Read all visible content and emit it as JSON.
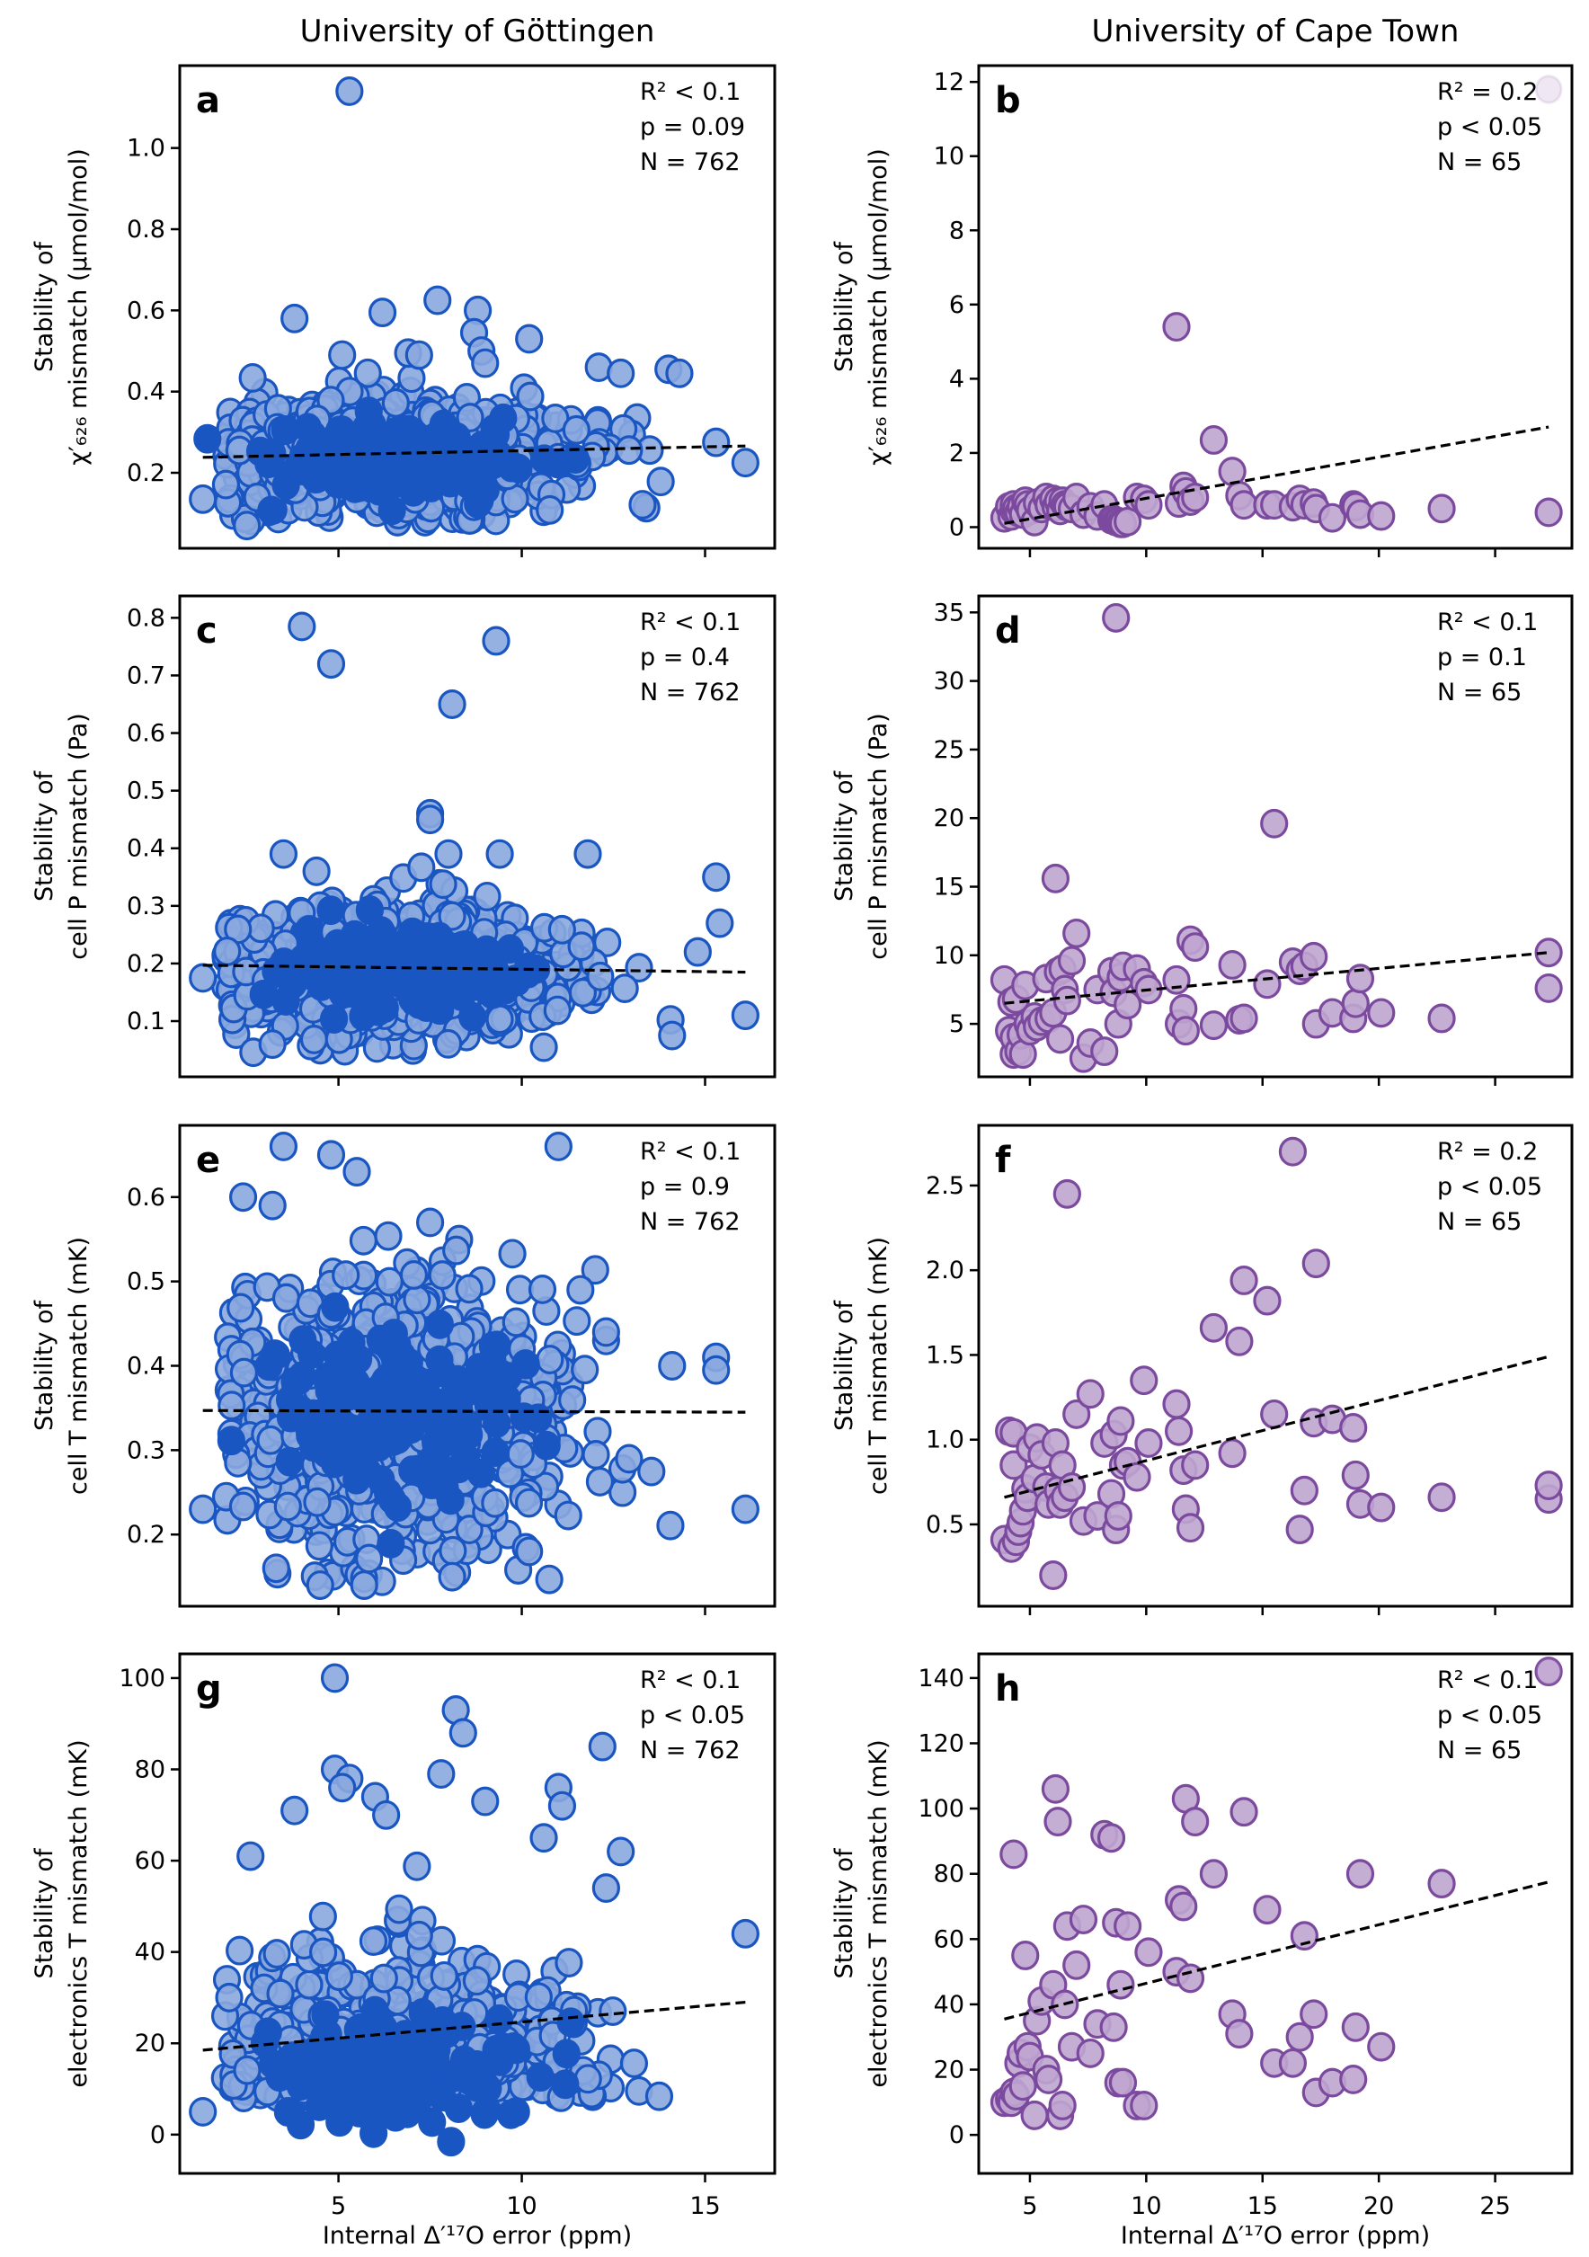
{
  "figure": {
    "column_titles": [
      "University of Göttingen",
      "University of Cape Town"
    ],
    "xlabel": "Internal Δ′¹⁷O error (ppm)",
    "colors": {
      "gottingen_edge": "#1a56c2",
      "gottingen_face": "#8aa8df",
      "capetown_edge": "#7b4a9e",
      "capetown_face": "#bfa5cf",
      "fit_line": "#000000"
    }
  },
  "chart_data": [
    {
      "id": "a",
      "type": "scatter",
      "group": "University of Göttingen",
      "ylabel_lines": [
        "Stability of",
        "χ′₆₂₆ mismatch (µmol/mol)"
      ],
      "xlim": [
        0.67,
        16.9
      ],
      "ylim": [
        0.014,
        1.203
      ],
      "xticks": [
        5,
        10,
        15
      ],
      "xtick_labels_shown": false,
      "yticks": [
        0.2,
        0.4,
        0.6,
        0.8,
        1.0
      ],
      "ytick_labels": [
        "0.2",
        "0.4",
        "0.6",
        "0.8",
        "1.0"
      ],
      "stats": {
        "r2": "R² < 0.1",
        "p": "p = 0.09",
        "n": "N = 762"
      },
      "fit": {
        "x": [
          1.3,
          16.1
        ],
        "y": [
          0.238,
          0.266
        ]
      },
      "outliers": {
        "x": [
          5.3,
          3.8,
          6.2,
          7.7,
          8.8,
          8.7,
          10.2,
          12.1,
          12.7,
          14.0,
          14.3,
          15.3,
          16.1,
          1.3,
          2.5,
          8.9,
          9.0,
          5.1,
          6.9,
          7.2
        ],
        "y": [
          1.14,
          0.58,
          0.595,
          0.625,
          0.6,
          0.545,
          0.53,
          0.46,
          0.445,
          0.455,
          0.445,
          0.275,
          0.225,
          0.135,
          0.07,
          0.5,
          0.47,
          0.49,
          0.495,
          0.49
        ]
      },
      "cloud": {
        "x_range": [
          1.9,
          15.4
        ],
        "x_center": 6.5,
        "y_center": 0.24,
        "y_spread": 0.07,
        "count": 742
      }
    },
    {
      "id": "b",
      "type": "scatter",
      "group": "University of Cape Town",
      "ylabel_lines": [
        "Stability of",
        "χ′₆₂₆ mismatch (µmol/mol)"
      ],
      "xlim": [
        2.8,
        28.3
      ],
      "ylim": [
        -0.57,
        12.44
      ],
      "xticks": [
        5,
        10,
        15,
        20,
        25
      ],
      "xtick_labels_shown": false,
      "yticks": [
        0,
        2,
        4,
        6,
        8,
        10,
        12
      ],
      "ytick_labels": [
        "0",
        "2",
        "4",
        "6",
        "8",
        "10",
        "12"
      ],
      "stats": {
        "r2": "R² = 0.2",
        "p": "p < 0.05",
        "n": "N = 65"
      },
      "fit": {
        "x": [
          3.9,
          27.3
        ],
        "y": [
          0.1,
          2.7
        ]
      },
      "series_ref": "capetown",
      "y": [
        0.25,
        0.55,
        0.3,
        0.45,
        0.6,
        0.5,
        0.4,
        0.55,
        0.35,
        0.7,
        0.6,
        0.45,
        0.15,
        0.65,
        0.5,
        0.8,
        0.6,
        0.75,
        0.55,
        0.7,
        0.45,
        0.7,
        0.6,
        0.55,
        0.5,
        0.8,
        0.35,
        0.55,
        0.3,
        0.6,
        0.2,
        0.2,
        0.15,
        0.15,
        0.1,
        0.1,
        0.15,
        0.8,
        0.75,
        0.6,
        5.4,
        0.65,
        1.1,
        0.95,
        0.7,
        0.8,
        2.35,
        1.5,
        0.85,
        0.6,
        0.6,
        0.6,
        0.55,
        0.75,
        0.6,
        0.65,
        0.5,
        0.25,
        0.6,
        0.55,
        0.35,
        0.3,
        0.5,
        0.4,
        11.8
      ]
    },
    {
      "id": "c",
      "type": "scatter",
      "group": "University of Göttingen",
      "ylabel_lines": [
        "Stability of",
        "cell P mismatch (Pa)"
      ],
      "xlim": [
        0.67,
        16.9
      ],
      "ylim": [
        0.0033,
        0.838
      ],
      "xticks": [
        5,
        10,
        15
      ],
      "xtick_labels_shown": false,
      "yticks": [
        0.1,
        0.2,
        0.3,
        0.4,
        0.5,
        0.6,
        0.7,
        0.8
      ],
      "ytick_labels": [
        "0.1",
        "0.2",
        "0.3",
        "0.4",
        "0.5",
        "0.6",
        "0.7",
        "0.8"
      ],
      "stats": {
        "r2": "R² < 0.1",
        "p": "p = 0.4",
        "n": "N = 762"
      },
      "fit": {
        "x": [
          1.3,
          16.1
        ],
        "y": [
          0.197,
          0.185
        ]
      },
      "outliers": {
        "x": [
          4.0,
          4.8,
          9.3,
          8.1,
          7.5,
          7.5,
          3.5,
          8.0,
          9.4,
          11.8,
          15.3,
          15.4,
          16.1,
          14.1,
          1.3,
          4.4,
          3.2,
          14.8
        ],
        "y": [
          0.785,
          0.72,
          0.76,
          0.65,
          0.46,
          0.45,
          0.39,
          0.39,
          0.39,
          0.39,
          0.35,
          0.27,
          0.11,
          0.075,
          0.175,
          0.36,
          0.06,
          0.22
        ]
      },
      "cloud": {
        "x_range": [
          1.9,
          14.8
        ],
        "x_center": 6.5,
        "y_center": 0.185,
        "y_spread": 0.055,
        "count": 744
      }
    },
    {
      "id": "d",
      "type": "scatter",
      "group": "University of Cape Town",
      "ylabel_lines": [
        "Stability of",
        "cell P mismatch (Pa)"
      ],
      "xlim": [
        2.8,
        28.3
      ],
      "ylim": [
        1.14,
        36.2
      ],
      "xticks": [
        5,
        10,
        15,
        20,
        25
      ],
      "xtick_labels_shown": false,
      "yticks": [
        5,
        10,
        15,
        20,
        25,
        30,
        35
      ],
      "ytick_labels": [
        "5",
        "10",
        "15",
        "20",
        "25",
        "30",
        "35"
      ],
      "stats": {
        "r2": "R² < 0.1",
        "p": "p = 0.1",
        "n": "N = 65"
      },
      "fit": {
        "x": [
          3.9,
          27.3
        ],
        "y": [
          6.5,
          10.2
        ]
      },
      "series_ref": "capetown",
      "y": [
        8.2,
        4.5,
        6.6,
        2.8,
        4.0,
        6.8,
        3.0,
        4.2,
        2.8,
        7.8,
        5.0,
        4.5,
        5.5,
        4.8,
        5.2,
        8.3,
        5.4,
        5.8,
        15.6,
        8.8,
        3.9,
        9.0,
        7.5,
        6.7,
        9.6,
        11.6,
        2.5,
        3.6,
        7.5,
        3.0,
        8.8,
        7.3,
        34.6,
        5.0,
        8.4,
        9.2,
        6.4,
        9.0,
        8.0,
        7.5,
        8.2,
        5.0,
        6.1,
        4.5,
        11.1,
        10.6,
        4.9,
        9.3,
        5.3,
        5.4,
        7.9,
        19.6,
        9.5,
        8.9,
        9.2,
        9.9,
        5.0,
        5.8,
        5.4,
        6.5,
        8.3,
        5.8,
        5.4,
        10.2,
        7.6
      ]
    },
    {
      "id": "e",
      "type": "scatter",
      "group": "University of Göttingen",
      "ylabel_lines": [
        "Stability of",
        "cell T mismatch (mK)"
      ],
      "xlim": [
        0.67,
        16.9
      ],
      "ylim": [
        0.115,
        0.685
      ],
      "xticks": [
        5,
        10,
        15
      ],
      "xtick_labels_shown": false,
      "yticks": [
        0.2,
        0.3,
        0.4,
        0.5,
        0.6
      ],
      "ytick_labels": [
        "0.2",
        "0.3",
        "0.4",
        "0.5",
        "0.6"
      ],
      "stats": {
        "r2": "R² < 0.1",
        "p": "p = 0.9",
        "n": "N = 762"
      },
      "fit": {
        "x": [
          1.3,
          16.1
        ],
        "y": [
          0.347,
          0.345
        ]
      },
      "outliers": {
        "x": [
          3.5,
          4.8,
          5.5,
          2.4,
          3.2,
          11.0,
          1.3,
          16.1,
          15.3,
          15.3,
          14.1,
          10.2,
          11.6,
          12.3,
          12.3,
          7.5,
          4.5,
          3.3,
          5.7,
          8.1
        ],
        "y": [
          0.66,
          0.65,
          0.63,
          0.6,
          0.59,
          0.66,
          0.23,
          0.23,
          0.41,
          0.395,
          0.4,
          0.18,
          0.49,
          0.43,
          0.44,
          0.57,
          0.14,
          0.16,
          0.14,
          0.15
        ]
      },
      "cloud": {
        "x_range": [
          1.9,
          14.5
        ],
        "x_center": 6.5,
        "y_center": 0.345,
        "y_spread": 0.08,
        "count": 742
      }
    },
    {
      "id": "f",
      "type": "scatter",
      "group": "University of Cape Town",
      "ylabel_lines": [
        "Stability of",
        "cell T mismatch (mK)"
      ],
      "xlim": [
        2.8,
        28.3
      ],
      "ylim": [
        0.017,
        2.855
      ],
      "xticks": [
        5,
        10,
        15,
        20,
        25
      ],
      "xtick_labels_shown": false,
      "yticks": [
        0.5,
        1.0,
        1.5,
        2.0,
        2.5
      ],
      "ytick_labels": [
        "0.5",
        "1.0",
        "1.5",
        "2.0",
        "2.5"
      ],
      "stats": {
        "r2": "R² = 0.2",
        "p": "p < 0.05",
        "n": "N = 65"
      },
      "fit": {
        "x": [
          3.9,
          27.3
        ],
        "y": [
          0.66,
          1.49
        ]
      },
      "series_ref": "capetown",
      "y": [
        0.41,
        1.05,
        0.36,
        1.04,
        0.85,
        0.4,
        0.46,
        0.51,
        0.58,
        0.71,
        0.66,
        0.95,
        0.77,
        1.01,
        0.91,
        0.72,
        0.62,
        0.2,
        0.98,
        0.7,
        0.62,
        0.85,
        0.66,
        2.45,
        0.72,
        1.15,
        0.52,
        1.27,
        0.55,
        0.98,
        0.68,
        1.03,
        0.47,
        0.55,
        1.11,
        0.85,
        0.87,
        0.78,
        1.35,
        0.98,
        1.21,
        1.05,
        0.82,
        0.59,
        0.48,
        0.85,
        1.66,
        0.92,
        1.58,
        1.94,
        1.82,
        1.15,
        2.7,
        0.47,
        0.7,
        1.1,
        2.04,
        1.12,
        1.07,
        0.79,
        0.62,
        0.6,
        0.66,
        0.65,
        0.73
      ]
    },
    {
      "id": "g",
      "type": "scatter",
      "group": "University of Göttingen",
      "ylabel_lines": [
        "Stability of",
        "electronics T mismatch (mK)"
      ],
      "xlim": [
        0.67,
        16.9
      ],
      "ylim": [
        -8.5,
        105.3
      ],
      "xticks": [
        5,
        10,
        15
      ],
      "xtick_labels": [
        "5",
        "10",
        "15"
      ],
      "xtick_labels_shown": true,
      "yticks": [
        0,
        20,
        40,
        60,
        80,
        100
      ],
      "ytick_labels": [
        "0",
        "20",
        "40",
        "60",
        "80",
        "100"
      ],
      "stats": {
        "r2": "R² < 0.1",
        "p": "p < 0.05",
        "n": "N = 762"
      },
      "fit": {
        "x": [
          1.3,
          16.1
        ],
        "y": [
          18.5,
          29.0
        ]
      },
      "outliers": {
        "x": [
          4.9,
          8.2,
          8.4,
          4.9,
          5.3,
          5.1,
          7.8,
          3.8,
          11.0,
          11.1,
          12.2,
          12.7,
          16.1,
          2.6,
          9.0,
          12.3,
          1.3,
          6.0,
          6.3,
          10.6
        ],
        "y": [
          100,
          93,
          88,
          80,
          78,
          76,
          79,
          71,
          76,
          72,
          85,
          62,
          44,
          61,
          73,
          54,
          5,
          74,
          70,
          65
        ]
      },
      "cloud": {
        "x_range": [
          1.9,
          15.4
        ],
        "x_center": 6.5,
        "y_center": 18,
        "y_spread": 13,
        "count": 742
      }
    },
    {
      "id": "h",
      "type": "scatter",
      "group": "University of Cape Town",
      "ylabel_lines": [
        "Stability of",
        "electronics T mismatch (mK)"
      ],
      "xlim": [
        2.8,
        28.3
      ],
      "ylim": [
        -11.8,
        147.4
      ],
      "xticks": [
        5,
        10,
        15,
        20,
        25
      ],
      "xtick_labels": [
        "5",
        "10",
        "15",
        "20",
        "25"
      ],
      "xtick_labels_shown": true,
      "yticks": [
        0,
        20,
        40,
        60,
        80,
        100,
        120,
        140
      ],
      "ytick_labels": [
        "0",
        "20",
        "40",
        "60",
        "80",
        "100",
        "120",
        "140"
      ],
      "stats": {
        "r2": "R² < 0.1",
        "p": "p < 0.05",
        "n": "N = 65"
      },
      "fit": {
        "x": [
          3.9,
          27.3
        ],
        "y": [
          35.5,
          77.5
        ]
      },
      "series_ref": "capetown",
      "y": [
        10,
        11,
        10,
        86,
        13,
        12,
        22,
        25,
        15,
        55,
        27,
        24,
        6,
        35,
        41,
        20,
        17,
        46,
        106,
        96,
        6,
        9,
        40,
        64,
        27,
        52,
        66,
        25,
        34,
        92,
        91,
        33,
        65,
        16,
        46,
        16,
        64,
        9,
        9,
        56,
        50,
        72,
        70,
        103,
        48,
        96,
        80,
        37,
        31,
        99,
        69,
        22,
        22,
        30,
        61,
        37,
        13,
        16,
        17,
        33,
        80,
        27,
        77,
        142,
        142
      ]
    }
  ],
  "capetown_x": [
    3.9,
    4.1,
    4.2,
    4.3,
    4.3,
    4.4,
    4.5,
    4.6,
    4.7,
    4.8,
    4.9,
    5.0,
    5.2,
    5.3,
    5.5,
    5.7,
    5.8,
    6.0,
    6.1,
    6.2,
    6.3,
    6.4,
    6.5,
    6.6,
    6.8,
    7.0,
    7.3,
    7.6,
    7.9,
    8.2,
    8.5,
    8.6,
    8.7,
    8.8,
    8.9,
    9.0,
    9.2,
    9.6,
    9.9,
    10.1,
    11.3,
    11.4,
    11.6,
    11.7,
    11.9,
    12.1,
    12.9,
    13.7,
    14.0,
    14.2,
    15.2,
    15.5,
    16.3,
    16.6,
    16.8,
    17.2,
    17.3,
    18.0,
    18.9,
    19.0,
    19.2,
    20.1,
    22.7,
    27.3,
    27.3
  ]
}
